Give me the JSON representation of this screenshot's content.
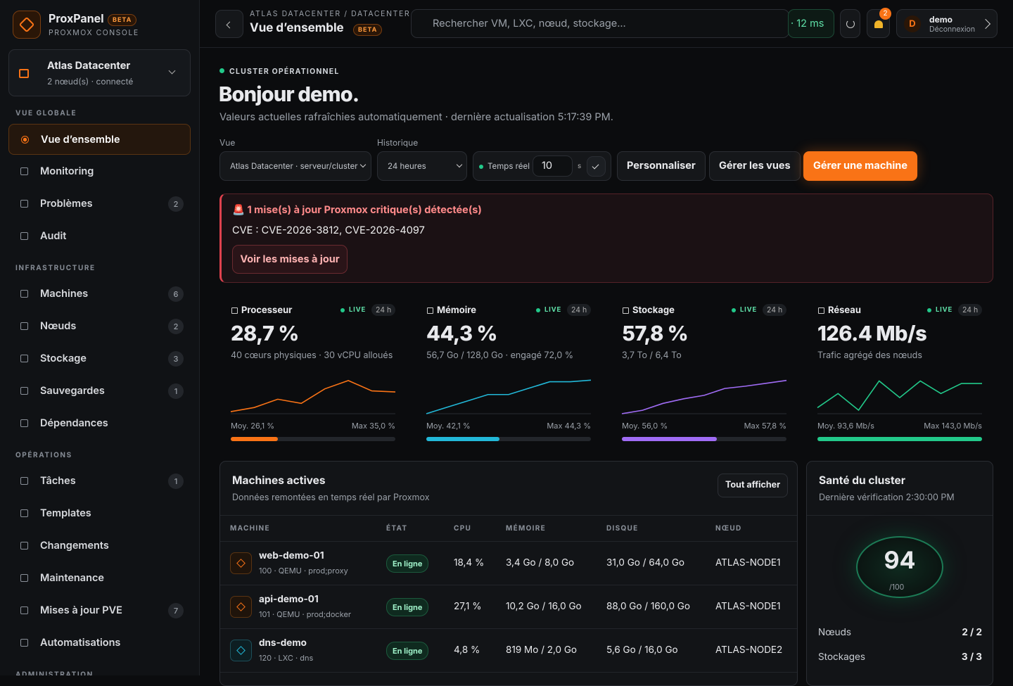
{
  "sidebar": {
    "brand": {
      "name": "ProxPanel",
      "badge": "BETA",
      "subtitle": "PROXMOX CONSOLE"
    },
    "datacenter": {
      "name": "Atlas Datacenter",
      "status": "2 nœud(s) · connecté"
    },
    "sections": [
      {
        "title": "VUE GLOBALE",
        "items": [
          {
            "label": "Vue d’ensemble",
            "active": true
          },
          {
            "label": "Monitoring"
          },
          {
            "label": "Problèmes",
            "count": 2
          },
          {
            "label": "Audit"
          }
        ]
      },
      {
        "title": "INFRASTRUCTURE",
        "items": [
          {
            "label": "Machines",
            "count": 6
          },
          {
            "label": "Nœuds",
            "count": 2
          },
          {
            "label": "Stockage",
            "count": 3
          },
          {
            "label": "Sauvegardes",
            "count": 1
          },
          {
            "label": "Dépendances"
          }
        ]
      },
      {
        "title": "OPÉRATIONS",
        "items": [
          {
            "label": "Tâches",
            "count": 1
          },
          {
            "label": "Templates"
          },
          {
            "label": "Changements"
          },
          {
            "label": "Maintenance"
          },
          {
            "label": "Mises à jour PVE",
            "count": 7
          },
          {
            "label": "Automatisations"
          }
        ]
      },
      {
        "title": "ADMINISTRATION",
        "items": []
      }
    ]
  },
  "header": {
    "breadcrumb": "ATLAS DATACENTER / DATACENTER",
    "title": "Vue d’ensemble",
    "badge": "BETA",
    "search_placeholder": "Rechercher VM, LXC, nœud, stockage...",
    "latency": "· 12 ms",
    "notifications": 2,
    "user": {
      "avatar": "D",
      "name": "demo",
      "action": "Déconnexion"
    }
  },
  "intro": {
    "status": "CLUSTER OPÉRATIONNEL",
    "greeting": "Bonjour demo.",
    "subtitle": "Valeurs actuelles rafraîchies automatiquement · dernière actualisation 5:17:39 PM."
  },
  "controls": {
    "view_label": "Vue",
    "view_value": "Atlas Datacenter · serveur/cluster",
    "history_label": "Historique",
    "history_value": "24 heures",
    "realtime_label": "Temps réel",
    "interval": 10,
    "interval_unit": "s",
    "buttons": [
      "Personnaliser",
      "Gérer les vues",
      "Gérer une machine"
    ]
  },
  "alert": {
    "title": "🚨 1 mise(s) à jour Proxmox critique(s) détectée(s)",
    "text": "CVE : CVE-2026-3812, CVE-2026-4097",
    "button": "Voir les mises à jour"
  },
  "metrics": [
    {
      "name": "Processeur",
      "live": "LIVE",
      "range": "24 h",
      "value": "28,7 %",
      "detail": "40 cœurs physiques · 30 vCPU alloués",
      "avg": "Moy. 26,1 %",
      "max": "Max 35,0 %",
      "color": "#f97316",
      "gauge": 28.7,
      "gauge_lim": [
        0,
        100
      ],
      "spark": [
        20,
        22,
        26,
        24,
        31,
        35,
        30,
        29.5
      ],
      "spark_ylim": [
        19,
        37
      ]
    },
    {
      "name": "Mémoire",
      "live": "LIVE",
      "range": "24 h",
      "value": "44,3 %",
      "detail": "56,7 Go / 128,0 Go · engagé 72,0 %",
      "avg": "Moy. 42,1 %",
      "max": "Max 44,3 %",
      "color": "#22b8d8",
      "gauge": 44.3,
      "gauge_lim": [
        0,
        100
      ],
      "spark": [
        38,
        39.2,
        40.4,
        41.6,
        41.6,
        42.8,
        44,
        44,
        44.3
      ],
      "spark_ylim": [
        38,
        45
      ]
    },
    {
      "name": "Stockage",
      "live": "LIVE",
      "range": "24 h",
      "value": "57,8 %",
      "detail": "3,7 To / 6,4 To",
      "avg": "Moy. 56,0 %",
      "max": "Max 57,8 %",
      "color": "#a06cf5",
      "gauge": 57.8,
      "gauge_lim": [
        0,
        100
      ],
      "spark": [
        52,
        52.6,
        53.8,
        54.6,
        55.2,
        56.4,
        56.8,
        57.3,
        57.8
      ],
      "spark_ylim": [
        52,
        58.5
      ]
    },
    {
      "name": "Réseau",
      "live": "LIVE",
      "range": "24 h",
      "value": "126.4 Mb/s",
      "detail": "Trafic agrégé des nœuds",
      "avg": "Moy. 93,6 Mb/s",
      "max": "Max 143,0 Mb/s",
      "color": "#22c98a",
      "gauge": 100,
      "gauge_lim": [
        0,
        100
      ],
      "spark": [
        90,
        118,
        85,
        143,
        110,
        143,
        118,
        138,
        138
      ],
      "spark_ylim": [
        78,
        152
      ]
    }
  ],
  "table": {
    "title": "Machines actives",
    "subtitle": "Données remontées en temps réel par Proxmox",
    "button": "Tout afficher",
    "columns": [
      "MACHINE",
      "ÉTAT",
      "CPU",
      "MÉMOIRE",
      "DISQUE",
      "NŒUD"
    ],
    "rows": [
      {
        "name": "web-demo-01",
        "meta": "100 · QEMU · prod;proxy",
        "state": "En ligne",
        "cpu": "18,4 %",
        "memory": "3,4 Go / 8,0 Go",
        "disk": "31,0 Go / 64,0 Go",
        "node": "ATLAS-NODE1",
        "kind": "qemu"
      },
      {
        "name": "api-demo-01",
        "meta": "101 · QEMU · prod;docker",
        "state": "En ligne",
        "cpu": "27,1 %",
        "memory": "10,2 Go / 16,0 Go",
        "disk": "88,0 Go / 160,0 Go",
        "node": "ATLAS-NODE1",
        "kind": "qemu"
      },
      {
        "name": "dns-demo",
        "meta": "120 · LXC · dns",
        "state": "En ligne",
        "cpu": "4,8 %",
        "memory": "819 Mo / 2,0 Go",
        "disk": "5,6 Go / 16,0 Go",
        "node": "ATLAS-NODE2",
        "kind": "lxc"
      }
    ]
  },
  "health": {
    "title": "Santé du cluster",
    "subtitle": "Dernière vérification 2:30:00 PM",
    "score": 94,
    "score_max": "/100",
    "rows": [
      {
        "label": "Nœuds",
        "value": "2 / 2"
      },
      {
        "label": "Stockages",
        "value": "3 / 3"
      }
    ]
  }
}
